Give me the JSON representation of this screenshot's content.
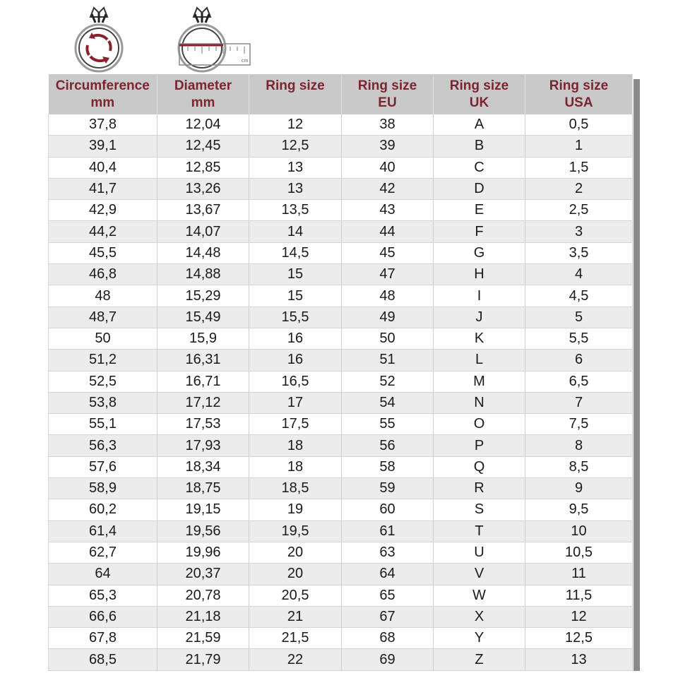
{
  "icons": {
    "circumference": "ring-circumference-icon",
    "diameter": "ring-diameter-ruler-icon",
    "ruler_unit": "cm"
  },
  "colors": {
    "header_bg": "#c9c9c9",
    "header_text": "#7b2531",
    "stripe": "#ececec",
    "accent": "#8b1f2a"
  },
  "headers": [
    {
      "line1": "Circumference",
      "line2": "mm"
    },
    {
      "line1": "Diameter",
      "line2": "mm"
    },
    {
      "line1": "Ring size",
      "line2": ""
    },
    {
      "line1": "Ring size",
      "line2": "EU"
    },
    {
      "line1": "Ring size",
      "line2": "UK"
    },
    {
      "line1": "Ring size",
      "line2": "USA"
    }
  ],
  "rows": [
    [
      "37,8",
      "12,04",
      "12",
      "38",
      "A",
      "0,5"
    ],
    [
      "39,1",
      "12,45",
      "12,5",
      "39",
      "B",
      "1"
    ],
    [
      "40,4",
      "12,85",
      "13",
      "40",
      "C",
      "1,5"
    ],
    [
      "41,7",
      "13,26",
      "13",
      "42",
      "D",
      "2"
    ],
    [
      "42,9",
      "13,67",
      "13,5",
      "43",
      "E",
      "2,5"
    ],
    [
      "44,2",
      "14,07",
      "14",
      "44",
      "F",
      "3"
    ],
    [
      "45,5",
      "14,48",
      "14,5",
      "45",
      "G",
      "3,5"
    ],
    [
      "46,8",
      "14,88",
      "15",
      "47",
      "H",
      "4"
    ],
    [
      "48",
      "15,29",
      "15",
      "48",
      "I",
      "4,5"
    ],
    [
      "48,7",
      "15,49",
      "15,5",
      "49",
      "J",
      "5"
    ],
    [
      "50",
      "15,9",
      "16",
      "50",
      "K",
      "5,5"
    ],
    [
      "51,2",
      "16,31",
      "16",
      "51",
      "L",
      "6"
    ],
    [
      "52,5",
      "16,71",
      "16,5",
      "52",
      "M",
      "6,5"
    ],
    [
      "53,8",
      "17,12",
      "17",
      "54",
      "N",
      "7"
    ],
    [
      "55,1",
      "17,53",
      "17,5",
      "55",
      "O",
      "7,5"
    ],
    [
      "56,3",
      "17,93",
      "18",
      "56",
      "P",
      "8"
    ],
    [
      "57,6",
      "18,34",
      "18",
      "58",
      "Q",
      "8,5"
    ],
    [
      "58,9",
      "18,75",
      "18,5",
      "59",
      "R",
      "9"
    ],
    [
      "60,2",
      "19,15",
      "19",
      "60",
      "S",
      "9,5"
    ],
    [
      "61,4",
      "19,56",
      "19,5",
      "61",
      "T",
      "10"
    ],
    [
      "62,7",
      "19,96",
      "20",
      "63",
      "U",
      "10,5"
    ],
    [
      "64",
      "20,37",
      "20",
      "64",
      "V",
      "11"
    ],
    [
      "65,3",
      "20,78",
      "20,5",
      "65",
      "W",
      "11,5"
    ],
    [
      "66,6",
      "21,18",
      "21",
      "67",
      "X",
      "12"
    ],
    [
      "67,8",
      "21,59",
      "21,5",
      "68",
      "Y",
      "12,5"
    ],
    [
      "68,5",
      "21,79",
      "22",
      "69",
      "Z",
      "13"
    ]
  ]
}
